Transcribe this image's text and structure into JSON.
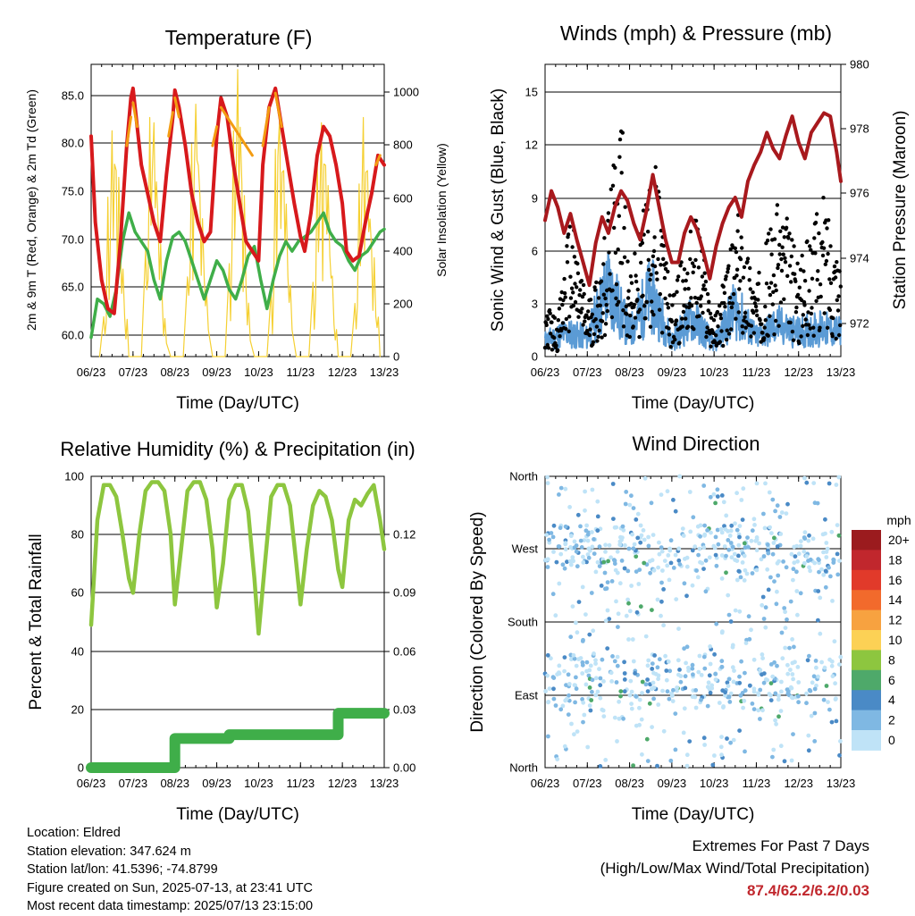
{
  "chart_data": [
    {
      "type": "line",
      "title": "Temperature (F)",
      "xlabel": "Time (Day/UTC)",
      "ylabel_left": "2m & 9m T (Red, Orange) & 2m Td (Green)",
      "ylabel_right": "Solar Insolation (Yellow)",
      "x_ticks": [
        "06/23",
        "07/23",
        "08/23",
        "09/23",
        "10/23",
        "11/23",
        "12/23",
        "13/23"
      ],
      "y_ticks_left": [
        "60.0",
        "65.0",
        "70.0",
        "75.0",
        "80.0",
        "85.0"
      ],
      "y_ticks_right": [
        "0",
        "200",
        "400",
        "600",
        "800",
        "1000"
      ],
      "ylim_left": [
        58,
        88.5
      ],
      "ylim_right": [
        0,
        1100
      ],
      "grid": true,
      "series": [
        {
          "color": "#d7191c",
          "x": [
            0,
            0.1,
            0.25,
            0.4,
            0.55,
            0.7,
            0.85,
            0.95,
            1.0,
            1.1,
            1.2,
            1.35,
            1.5,
            1.65,
            1.8,
            1.95,
            2.0,
            2.1,
            2.25,
            2.4,
            2.55,
            2.7,
            2.85,
            3.0,
            3.1,
            3.25,
            3.4,
            3.55,
            3.7,
            3.85,
            4.0,
            4.1,
            4.25,
            4.4,
            4.55,
            4.7,
            4.85,
            5.0,
            5.1,
            5.25,
            5.4,
            5.55,
            5.7,
            5.85,
            6.0,
            6.1,
            6.25,
            6.4,
            6.55,
            6.7,
            6.85,
            7.0
          ],
          "y": [
            81,
            72,
            66,
            63,
            62.5,
            70,
            80,
            85,
            86,
            82,
            78,
            75,
            72,
            70,
            77,
            83,
            85.8,
            84,
            80,
            75,
            72,
            70,
            71,
            81,
            85,
            83,
            78,
            74,
            70,
            69,
            68,
            78,
            84,
            86,
            82,
            78,
            74,
            70.5,
            69,
            73,
            79,
            82,
            81,
            78,
            74,
            69,
            68,
            68.5,
            72,
            75,
            79,
            78
          ]
        },
        {
          "color": "#f39c12",
          "x": [
            0.85,
            0.95,
            1.0,
            1.1,
            1.85,
            1.95,
            2.0,
            2.1,
            2.9,
            3.0,
            3.1,
            3.85,
            4.1,
            4.25,
            4.4,
            4.55,
            6.8,
            6.9
          ],
          "y": [
            80,
            83,
            84.5,
            82,
            81,
            83.5,
            85,
            83,
            80,
            82,
            84,
            79,
            80,
            84,
            85.5,
            82,
            78,
            79
          ]
        },
        {
          "color": "#3fae49",
          "x": [
            0,
            0.15,
            0.3,
            0.45,
            0.6,
            0.75,
            0.9,
            1.05,
            1.2,
            1.35,
            1.5,
            1.65,
            1.8,
            1.95,
            2.1,
            2.25,
            2.4,
            2.55,
            2.7,
            2.85,
            3.0,
            3.15,
            3.3,
            3.45,
            3.6,
            3.75,
            3.9,
            4.05,
            4.2,
            4.35,
            4.5,
            4.65,
            4.8,
            4.95,
            5.1,
            5.25,
            5.4,
            5.55,
            5.7,
            5.85,
            6.0,
            6.15,
            6.3,
            6.45,
            6.6,
            6.75,
            6.9,
            7.0
          ],
          "y": [
            60,
            64,
            63.5,
            62.2,
            65,
            70,
            73,
            71,
            70,
            69,
            66,
            64,
            68,
            70.5,
            71,
            70,
            68,
            66,
            64,
            66,
            68,
            67,
            65,
            64,
            66,
            68.5,
            69.5,
            66,
            63,
            66,
            68.5,
            70,
            69,
            70,
            70.5,
            71,
            72,
            73,
            71,
            70,
            69.5,
            68,
            67,
            68.5,
            69,
            70,
            71,
            71.3
          ]
        },
        {
          "color": "#f5d033",
          "axis": "right",
          "x": [
            0.2,
            0.3,
            0.4,
            0.5,
            0.6,
            0.7,
            0.8,
            0.9,
            1.2,
            1.3,
            1.4,
            1.5,
            1.6,
            1.7,
            1.8,
            1.9,
            2.2,
            2.3,
            2.4,
            2.5,
            2.6,
            2.7,
            2.8,
            2.9,
            3.2,
            3.3,
            3.4,
            3.5,
            3.6,
            3.7,
            3.8,
            3.9,
            4.2,
            4.3,
            4.4,
            4.5,
            4.6,
            4.7,
            4.8,
            4.9,
            5.2,
            5.3,
            5.4,
            5.5,
            5.6,
            5.7,
            5.8,
            5.9,
            6.2,
            6.3,
            6.4,
            6.5,
            6.6,
            6.7,
            6.8,
            6.9
          ],
          "y": [
            0,
            150,
            600,
            850,
            700,
            400,
            150,
            0,
            0,
            400,
            900,
            880,
            500,
            200,
            50,
            0,
            0,
            300,
            800,
            950,
            600,
            300,
            100,
            0,
            0,
            350,
            850,
            1080,
            650,
            250,
            60,
            0,
            0,
            250,
            780,
            900,
            700,
            300,
            100,
            0,
            0,
            280,
            750,
            880,
            720,
            380,
            120,
            0,
            0,
            200,
            650,
            900,
            700,
            400,
            150,
            0
          ]
        }
      ]
    },
    {
      "type": "scatter",
      "title": "Winds (mph) & Pressure (mb)",
      "xlabel": "Time (Day/UTC)",
      "ylabel_left": "Sonic Wind & Gust (Blue, Black)",
      "ylabel_right": "Station Pressure (Maroon)",
      "x_ticks": [
        "06/23",
        "07/23",
        "08/23",
        "09/23",
        "10/23",
        "11/23",
        "12/23",
        "13/23"
      ],
      "y_ticks_left": [
        "0",
        "3",
        "6",
        "9",
        "12",
        "15"
      ],
      "y_ticks_right": [
        "972",
        "974",
        "976",
        "978",
        "980"
      ],
      "ylim_left": [
        0,
        16.7
      ],
      "ylim_right": [
        971,
        980
      ],
      "grid": true,
      "series": [
        {
          "color": "#5b9bd5",
          "x": [
            0,
            0.5,
            1.0,
            1.5,
            2.0,
            2.5,
            3.0,
            3.5,
            4.0,
            4.5,
            5.0,
            5.5,
            6.0,
            6.5,
            7.0
          ],
          "y": [
            1.0,
            1.5,
            1.2,
            4.5,
            1.5,
            4.0,
            1.0,
            2.5,
            0.8,
            3.0,
            1.2,
            2.0,
            1.5,
            1.8,
            1.5
          ]
        },
        {
          "color": "#000000",
          "x": [
            0,
            0.3,
            0.6,
            1.0,
            1.3,
            1.6,
            1.8,
            2.0,
            2.3,
            2.6,
            3.0,
            3.3,
            3.6,
            4.0,
            4.3,
            4.6,
            5.0,
            5.3,
            5.6,
            6.0,
            6.3,
            6.6,
            7.0
          ],
          "y": [
            3,
            2,
            8,
            3,
            5,
            10,
            14.6,
            4,
            8,
            11,
            3,
            6,
            8,
            2,
            5,
            8,
            4,
            7,
            9,
            5,
            7,
            9,
            6
          ]
        },
        {
          "color": "#a8191d",
          "axis": "right",
          "x": [
            0,
            0.15,
            0.3,
            0.45,
            0.6,
            0.75,
            0.9,
            1.05,
            1.2,
            1.35,
            1.5,
            1.65,
            1.8,
            1.95,
            2.1,
            2.25,
            2.4,
            2.55,
            2.7,
            2.85,
            3.0,
            3.15,
            3.3,
            3.45,
            3.6,
            3.75,
            3.9,
            4.05,
            4.2,
            4.35,
            4.5,
            4.65,
            4.8,
            4.95,
            5.1,
            5.25,
            5.4,
            5.55,
            5.7,
            5.85,
            6.0,
            6.15,
            6.3,
            6.45,
            6.6,
            6.75,
            6.9,
            7.0
          ],
          "y": [
            975.2,
            976.1,
            975.6,
            974.8,
            975.4,
            974.6,
            973.9,
            973.2,
            974.5,
            975.3,
            974.8,
            975.6,
            976.1,
            975.8,
            975.1,
            974.6,
            975.5,
            976.6,
            975.6,
            974.6,
            973.9,
            973.9,
            974.8,
            975.3,
            974.9,
            974.2,
            973.4,
            974.4,
            975.1,
            975.6,
            975.9,
            975.3,
            976.4,
            976.9,
            977.3,
            977.9,
            977.4,
            977.1,
            977.8,
            978.4,
            977.6,
            977.1,
            977.9,
            978.2,
            978.5,
            978.4,
            977.3,
            976.4
          ]
        }
      ]
    },
    {
      "type": "line",
      "title": "Relative Humidity (%) & Precipitation (in)",
      "xlabel": "Time (Day/UTC)",
      "ylabel_left": "Percent & Total Rainfall",
      "x_ticks": [
        "06/23",
        "07/23",
        "08/23",
        "09/23",
        "10/23",
        "11/23",
        "12/23",
        "13/23"
      ],
      "y_ticks_left": [
        "0",
        "20",
        "40",
        "60",
        "80",
        "100"
      ],
      "y_ticks_right": [
        "0.00",
        "0.03",
        "0.06",
        "0.09",
        "0.12"
      ],
      "ylim_left": [
        0,
        100
      ],
      "ylim_right": [
        0,
        0.15
      ],
      "grid": true,
      "series": [
        {
          "color": "#8dc63f",
          "x": [
            0,
            0.15,
            0.3,
            0.45,
            0.6,
            0.75,
            0.9,
            1.0,
            1.15,
            1.3,
            1.45,
            1.6,
            1.75,
            1.9,
            2.0,
            2.15,
            2.3,
            2.45,
            2.6,
            2.75,
            2.9,
            3.0,
            3.15,
            3.3,
            3.45,
            3.6,
            3.75,
            3.9,
            4.0,
            4.15,
            4.3,
            4.45,
            4.6,
            4.75,
            4.9,
            5.0,
            5.15,
            5.3,
            5.45,
            5.6,
            5.75,
            5.9,
            6.0,
            6.15,
            6.3,
            6.45,
            6.6,
            6.75,
            6.9,
            7.0
          ],
          "y": [
            49,
            85,
            97,
            97,
            93,
            80,
            65,
            60,
            80,
            95,
            98,
            98,
            95,
            80,
            56,
            75,
            95,
            98,
            98,
            92,
            75,
            55,
            70,
            92,
            97,
            97,
            88,
            65,
            46,
            70,
            93,
            97,
            97,
            90,
            70,
            56,
            75,
            90,
            95,
            93,
            85,
            68,
            62,
            85,
            92,
            90,
            94,
            97,
            85,
            75
          ]
        },
        {
          "color": "#3fae49",
          "axis": "right",
          "x": [
            0,
            2.0,
            2.0,
            3.3,
            3.3,
            5.9,
            5.9,
            7.0
          ],
          "y": [
            0,
            0,
            0.015,
            0.015,
            0.017,
            0.017,
            0.028,
            0.028
          ]
        }
      ]
    },
    {
      "type": "scatter",
      "title": "Wind Direction",
      "xlabel": "Time (Day/UTC)",
      "ylabel_left": "Direction (Colored By Speed)",
      "x_ticks": [
        "06/23",
        "07/23",
        "08/23",
        "09/23",
        "10/23",
        "11/23",
        "12/23",
        "13/23"
      ],
      "y_ticks_left": [
        "North",
        "East",
        "South",
        "West",
        "North"
      ],
      "ylim_left": [
        0,
        360
      ],
      "grid": true,
      "legend_title": "mph",
      "legend_labels": [
        "20+",
        "18",
        "16",
        "14",
        "12",
        "10",
        "8",
        "6",
        "4",
        "2",
        "0"
      ],
      "legend_colors": [
        "#9b1b1e",
        "#c1272d",
        "#e13a2a",
        "#f26a2c",
        "#f7a240",
        "#fcd155",
        "#8dc63f",
        "#4ea96a",
        "#4a8ac6",
        "#7fb8e3",
        "#bfe3f7"
      ],
      "legend_placement": "right"
    }
  ],
  "info": {
    "location": "Location: Eldred",
    "elevation": "Station elevation: 347.624 m",
    "latlon": "Station lat/lon: 41.5396; -74.8799",
    "created": "Figure created on Sun, 2025-07-13, at 23:41 UTC",
    "recent": "Most recent data timestamp: 2025/07/13 23:15:00"
  },
  "extremes": {
    "title": "Extremes For Past 7 Days",
    "subtitle": "(High/Low/Max Wind/Total Precipitation)",
    "values": "87.4/62.2/6.2/0.03"
  }
}
